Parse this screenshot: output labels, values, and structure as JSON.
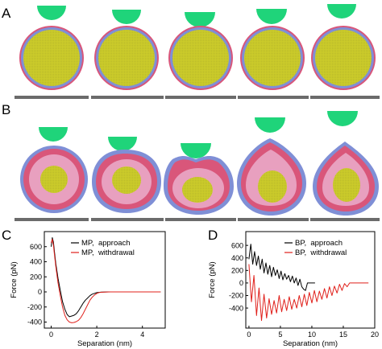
{
  "panels": {
    "A": {
      "label": "A"
    },
    "B": {
      "label": "B"
    },
    "C": {
      "label": "C"
    },
    "D": {
      "label": "D"
    }
  },
  "colors": {
    "tip": "#1fd47a",
    "core": "#c9c928",
    "shell_blue": "#7f8fd6",
    "shell_red": "#d9567a",
    "pink": "#e8a0bf",
    "scalebar": "#6b6b6b",
    "approach": "#000000",
    "withdrawal": "#e0201b"
  },
  "chart_data": [
    {
      "type": "line",
      "title": "",
      "xlabel": "Separation (nm)",
      "ylabel": "Force (pN)",
      "xlim": [
        -0.3,
        5
      ],
      "ylim": [
        -480,
        800
      ],
      "xticks": [
        "0",
        "2",
        "4"
      ],
      "yticks": [
        "-400",
        "-200",
        "0",
        "200",
        "400",
        "600"
      ],
      "legend_position": "top-right",
      "series": [
        {
          "name": "MP,  approach",
          "x": [
            0.0,
            0.05,
            0.1,
            0.15,
            0.2,
            0.3,
            0.4,
            0.5,
            0.6,
            0.7,
            0.8,
            0.9,
            1.0,
            1.1,
            1.2,
            1.3,
            1.4,
            1.5,
            1.6,
            1.7,
            1.8,
            2.0,
            2.2,
            2.5,
            3.0,
            4.0,
            4.8
          ],
          "y": [
            600,
            720,
            660,
            520,
            380,
            180,
            20,
            -130,
            -230,
            -300,
            -330,
            -320,
            -310,
            -290,
            -250,
            -200,
            -150,
            -110,
            -80,
            -50,
            -30,
            -10,
            -3,
            0,
            0,
            0,
            0
          ]
        },
        {
          "name": "MP,  withdrawal",
          "x": [
            0.0,
            0.05,
            0.1,
            0.15,
            0.2,
            0.3,
            0.4,
            0.5,
            0.6,
            0.7,
            0.8,
            0.9,
            1.0,
            1.1,
            1.2,
            1.3,
            1.4,
            1.5,
            1.6,
            1.7,
            1.8,
            1.9,
            2.0,
            2.1,
            2.3,
            2.6,
            3.0,
            4.0,
            4.8
          ],
          "y": [
            650,
            700,
            620,
            480,
            340,
            120,
            -50,
            -200,
            -310,
            -370,
            -400,
            -410,
            -405,
            -395,
            -375,
            -340,
            -290,
            -230,
            -170,
            -110,
            -70,
            -40,
            -20,
            -8,
            -2,
            0,
            0,
            0,
            0
          ]
        }
      ]
    },
    {
      "type": "line",
      "title": "",
      "xlabel": "Separation (nm)",
      "ylabel": "Force (pN)",
      "xlim": [
        -0.5,
        20
      ],
      "ylim": [
        -720,
        820
      ],
      "xticks": [
        "0",
        "5",
        "10",
        "15",
        "20"
      ],
      "yticks": [
        "-400",
        "-200",
        "0",
        "200",
        "400",
        "600"
      ],
      "legend_position": "top-right",
      "series": [
        {
          "name": "BP,  approach",
          "x": [
            0.0,
            0.3,
            0.6,
            0.9,
            1.2,
            1.5,
            1.8,
            2.1,
            2.4,
            2.7,
            3.0,
            3.3,
            3.6,
            3.9,
            4.2,
            4.5,
            4.8,
            5.1,
            5.4,
            5.7,
            6.0,
            6.3,
            6.6,
            6.9,
            7.2,
            7.5,
            7.8,
            8.1,
            8.4,
            8.7,
            9.0,
            9.3,
            9.6,
            9.9,
            10.2,
            10.5
          ],
          "y": [
            380,
            620,
            300,
            500,
            280,
            430,
            220,
            380,
            160,
            320,
            140,
            280,
            100,
            250,
            120,
            210,
            70,
            190,
            50,
            150,
            60,
            120,
            20,
            110,
            0,
            80,
            -40,
            60,
            -60,
            -100,
            -120,
            0,
            0,
            0,
            0,
            0
          ]
        },
        {
          "name": "BP,  withdrawal",
          "x": [
            0.0,
            0.4,
            0.8,
            1.2,
            1.6,
            2.0,
            2.4,
            2.8,
            3.2,
            3.6,
            4.0,
            4.4,
            4.8,
            5.2,
            5.6,
            6.0,
            6.4,
            6.8,
            7.2,
            7.6,
            8.0,
            8.4,
            8.8,
            9.2,
            9.6,
            10.0,
            10.4,
            10.8,
            11.2,
            11.6,
            12.0,
            12.4,
            12.8,
            13.2,
            13.6,
            14.0,
            14.4,
            14.8,
            15.2,
            15.6,
            16.0,
            17.0,
            18.0,
            19.0
          ],
          "y": [
            300,
            -300,
            120,
            -520,
            -80,
            -600,
            -180,
            -560,
            -250,
            -500,
            -280,
            -480,
            -200,
            -460,
            -260,
            -440,
            -220,
            -420,
            -260,
            -400,
            -200,
            -380,
            -180,
            -360,
            -150,
            -320,
            -120,
            -300,
            -130,
            -260,
            -90,
            -240,
            -60,
            -200,
            -50,
            -160,
            -20,
            -120,
            -10,
            -60,
            0,
            0,
            0,
            0
          ]
        }
      ]
    }
  ]
}
